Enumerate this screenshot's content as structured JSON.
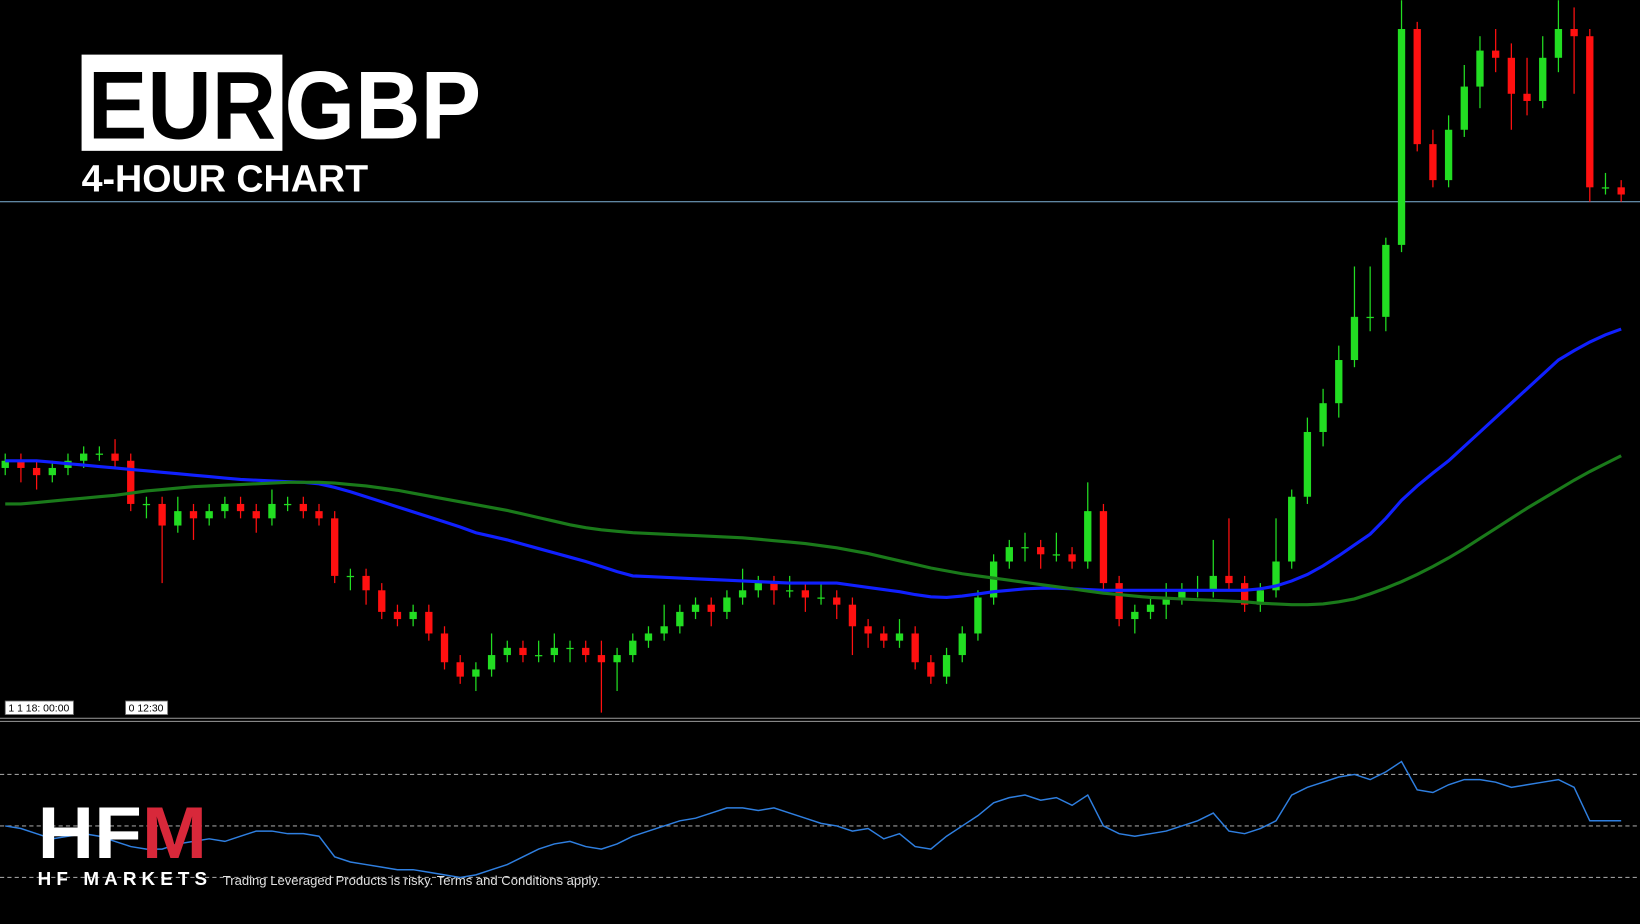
{
  "chart_data": {
    "type": "candlestick",
    "title": [
      "EUR",
      "GBP"
    ],
    "subtitle": "4-HOUR CHART",
    "time_labels": [
      "1 1 18: 00:00",
      "0 12:30"
    ],
    "ylim": [
      0,
      100
    ],
    "up_color": "#22dd22",
    "down_color": "#ff1010",
    "hline": 72,
    "hline_color": "#7fb2d8",
    "candles": [
      [
        35,
        37,
        34,
        36
      ],
      [
        36,
        37,
        33,
        35
      ],
      [
        35,
        36,
        32,
        34
      ],
      [
        34,
        36,
        33,
        35
      ],
      [
        35,
        37,
        34,
        36
      ],
      [
        36,
        38,
        35,
        37
      ],
      [
        37,
        38,
        36,
        37
      ],
      [
        37,
        39,
        35,
        36
      ],
      [
        36,
        37,
        29,
        30
      ],
      [
        30,
        31,
        28,
        30
      ],
      [
        30,
        31,
        19,
        27
      ],
      [
        27,
        31,
        26,
        29
      ],
      [
        29,
        30,
        25,
        28
      ],
      [
        28,
        30,
        27,
        29
      ],
      [
        29,
        31,
        28,
        30
      ],
      [
        30,
        31,
        28,
        29
      ],
      [
        29,
        30,
        26,
        28
      ],
      [
        28,
        32,
        27,
        30
      ],
      [
        30,
        31,
        29,
        30
      ],
      [
        30,
        31,
        28,
        29
      ],
      [
        29,
        30,
        27,
        28
      ],
      [
        28,
        29,
        19,
        20
      ],
      [
        20,
        21,
        18,
        20
      ],
      [
        20,
        21,
        16,
        18
      ],
      [
        18,
        19,
        14,
        15
      ],
      [
        15,
        16,
        13,
        14
      ],
      [
        14,
        16,
        13,
        15
      ],
      [
        15,
        16,
        11,
        12
      ],
      [
        12,
        13,
        7,
        8
      ],
      [
        8,
        9,
        5,
        6
      ],
      [
        6,
        8,
        4,
        7
      ],
      [
        7,
        12,
        6,
        9
      ],
      [
        9,
        11,
        8,
        10
      ],
      [
        10,
        11,
        8,
        9
      ],
      [
        9,
        11,
        8,
        9
      ],
      [
        9,
        12,
        8,
        10
      ],
      [
        10,
        11,
        8,
        10
      ],
      [
        10,
        11,
        8,
        9
      ],
      [
        9,
        11,
        1,
        8
      ],
      [
        8,
        10,
        4,
        9
      ],
      [
        9,
        12,
        8,
        11
      ],
      [
        11,
        13,
        10,
        12
      ],
      [
        12,
        16,
        11,
        13
      ],
      [
        13,
        16,
        12,
        15
      ],
      [
        15,
        17,
        14,
        16
      ],
      [
        16,
        17,
        13,
        15
      ],
      [
        15,
        18,
        14,
        17
      ],
      [
        17,
        21,
        16,
        18
      ],
      [
        18,
        20,
        17,
        19
      ],
      [
        19,
        20,
        16,
        18
      ],
      [
        18,
        20,
        17,
        18
      ],
      [
        18,
        19,
        15,
        17
      ],
      [
        17,
        19,
        16,
        17
      ],
      [
        17,
        18,
        14,
        16
      ],
      [
        16,
        17,
        9,
        13
      ],
      [
        13,
        14,
        10,
        12
      ],
      [
        12,
        13,
        10,
        11
      ],
      [
        11,
        14,
        10,
        12
      ],
      [
        12,
        13,
        7,
        8
      ],
      [
        8,
        9,
        5,
        6
      ],
      [
        6,
        10,
        5,
        9
      ],
      [
        9,
        13,
        8,
        12
      ],
      [
        12,
        18,
        11,
        17
      ],
      [
        17,
        23,
        16,
        22
      ],
      [
        22,
        25,
        21,
        24
      ],
      [
        24,
        26,
        22,
        24
      ],
      [
        24,
        25,
        21,
        23
      ],
      [
        23,
        26,
        22,
        23
      ],
      [
        23,
        24,
        21,
        22
      ],
      [
        22,
        33,
        21,
        29
      ],
      [
        29,
        30,
        18,
        19
      ],
      [
        19,
        20,
        13,
        14
      ],
      [
        14,
        16,
        12,
        15
      ],
      [
        15,
        17,
        14,
        16
      ],
      [
        16,
        19,
        14,
        17
      ],
      [
        17,
        19,
        16,
        18
      ],
      [
        18,
        20,
        17,
        18
      ],
      [
        18,
        25,
        17,
        20
      ],
      [
        20,
        28,
        18,
        19
      ],
      [
        19,
        20,
        15,
        16
      ],
      [
        16,
        19,
        15,
        18
      ],
      [
        18,
        28,
        17,
        22
      ],
      [
        22,
        32,
        21,
        31
      ],
      [
        31,
        42,
        30,
        40
      ],
      [
        40,
        46,
        38,
        44
      ],
      [
        44,
        52,
        42,
        50
      ],
      [
        50,
        63,
        49,
        56
      ],
      [
        56,
        63,
        54,
        56
      ],
      [
        56,
        67,
        54,
        66
      ],
      [
        66,
        100,
        65,
        96
      ],
      [
        96,
        97,
        79,
        80
      ],
      [
        80,
        82,
        74,
        75
      ],
      [
        75,
        84,
        74,
        82
      ],
      [
        82,
        91,
        81,
        88
      ],
      [
        88,
        95,
        85,
        93
      ],
      [
        93,
        96,
        90,
        92
      ],
      [
        92,
        94,
        82,
        87
      ],
      [
        87,
        92,
        84,
        86
      ],
      [
        86,
        95,
        85,
        92
      ],
      [
        92,
        100,
        90,
        96
      ],
      [
        96,
        99,
        87,
        95
      ],
      [
        95,
        96,
        72,
        74
      ],
      [
        74,
        76,
        73,
        74
      ],
      [
        74,
        75,
        72,
        73
      ]
    ],
    "moving_averages": [
      {
        "color": "#1020ff",
        "values": [
          36,
          36,
          36,
          35.8,
          35.6,
          35.4,
          35.2,
          35,
          34.8,
          34.6,
          34.4,
          34.2,
          34,
          33.8,
          33.6,
          33.4,
          33.3,
          33.2,
          33.1,
          33,
          32.8,
          32.3,
          31.7,
          31,
          30.3,
          29.6,
          28.9,
          28.2,
          27.5,
          26.8,
          26,
          25.5,
          25,
          24.4,
          23.8,
          23.2,
          22.6,
          22,
          21.3,
          20.6,
          20,
          19.9,
          19.8,
          19.7,
          19.6,
          19.5,
          19.4,
          19.3,
          19.2,
          19.1,
          19,
          19,
          19,
          19,
          18.7,
          18.4,
          18.1,
          17.8,
          17.4,
          17.1,
          17,
          17.2,
          17.5,
          17.8,
          18,
          18.2,
          18.3,
          18.3,
          18.2,
          18.1,
          18,
          18,
          18,
          18,
          18,
          18,
          18,
          18,
          18,
          18,
          18.2,
          18.6,
          19.3,
          20.2,
          21.4,
          22.8,
          24.3,
          25.8,
          28,
          30.5,
          32.5,
          34.3,
          36,
          38,
          40,
          42,
          44,
          46,
          48,
          50,
          51.3,
          52.5,
          53.5,
          54.3
        ]
      },
      {
        "color": "#1a7a1a",
        "values": [
          30,
          30,
          30.2,
          30.4,
          30.6,
          30.8,
          31,
          31.2,
          31.5,
          31.8,
          32,
          32.2,
          32.4,
          32.5,
          32.6,
          32.7,
          32.8,
          32.9,
          33,
          33,
          33,
          32.9,
          32.7,
          32.5,
          32.2,
          31.9,
          31.5,
          31.1,
          30.7,
          30.3,
          29.9,
          29.5,
          29.1,
          28.6,
          28.1,
          27.6,
          27.1,
          26.7,
          26.4,
          26.2,
          26,
          25.9,
          25.8,
          25.7,
          25.6,
          25.5,
          25.4,
          25.3,
          25.1,
          24.9,
          24.7,
          24.5,
          24.2,
          23.9,
          23.5,
          23.1,
          22.6,
          22.1,
          21.6,
          21.1,
          20.7,
          20.3,
          20,
          19.7,
          19.4,
          19.1,
          18.8,
          18.5,
          18.2,
          17.9,
          17.6,
          17.4,
          17.2,
          17,
          16.9,
          16.8,
          16.7,
          16.6,
          16.5,
          16.4,
          16.2,
          16.1,
          16,
          16,
          16.1,
          16.4,
          16.8,
          17.5,
          18.3,
          19.2,
          20.2,
          21.3,
          22.5,
          23.8,
          25.2,
          26.6,
          28,
          29.4,
          30.7,
          32,
          33.3,
          34.5,
          35.6,
          36.7
        ]
      }
    ],
    "oscillator": {
      "color": "#2f7fe0",
      "ylim": [
        12,
        90
      ],
      "levels": [
        30,
        50,
        70
      ],
      "values": [
        50,
        49,
        47,
        45,
        46,
        47,
        46,
        44,
        42,
        41,
        41,
        43,
        44,
        45,
        44,
        46,
        48,
        48,
        47,
        47,
        46,
        38,
        36,
        35,
        34,
        33,
        33,
        32,
        31,
        30,
        31,
        33,
        35,
        38,
        41,
        43,
        44,
        42,
        41,
        43,
        46,
        48,
        50,
        52,
        53,
        55,
        57,
        57,
        56,
        57,
        55,
        53,
        51,
        50,
        48,
        49,
        45,
        47,
        42,
        41,
        46,
        50,
        54,
        59,
        61,
        62,
        60,
        61,
        58,
        62,
        50,
        47,
        46,
        47,
        48,
        50,
        52,
        55,
        48,
        47,
        49,
        52,
        62,
        65,
        67,
        69,
        70,
        68,
        71,
        75,
        64,
        63,
        66,
        68,
        68,
        67,
        65,
        66,
        67,
        68,
        65,
        52,
        52,
        52
      ]
    }
  },
  "brand": {
    "logo": "HFM",
    "name": "HF MARKETS",
    "disclaimer": "Trading Leveraged Products is risky. Terms and Conditions apply."
  }
}
